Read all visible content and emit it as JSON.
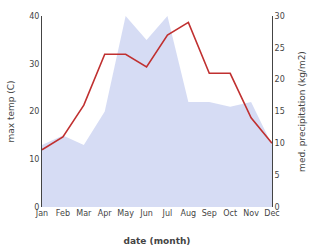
{
  "chart_data": {
    "type": "line",
    "xlabel": "date (month)",
    "ylabel": "max temp (C)",
    "y2label": "med. precipitation (kg/m2)",
    "categories": [
      "Jan",
      "Feb",
      "Mar",
      "Apr",
      "May",
      "Jun",
      "Jul",
      "Aug",
      "Sep",
      "Oct",
      "Nov",
      "Dec"
    ],
    "series": [
      {
        "type": "area",
        "color": "#c8d0f0",
        "values": [
          13,
          15,
          13,
          20,
          40,
          35,
          40,
          22,
          22,
          21,
          22,
          13
        ]
      },
      {
        "type": "line",
        "color": "#c03030",
        "axis": "y2",
        "values": [
          9,
          11,
          16,
          24,
          24,
          22,
          27,
          29,
          21,
          21,
          14,
          10
        ]
      }
    ],
    "ylim": [
      0,
      40
    ],
    "yticks": [
      0,
      10,
      20,
      30,
      40
    ],
    "y2lim": [
      0,
      30
    ],
    "y2ticks": [
      0,
      5,
      10,
      15,
      20,
      25,
      30
    ],
    "grid": false
  }
}
